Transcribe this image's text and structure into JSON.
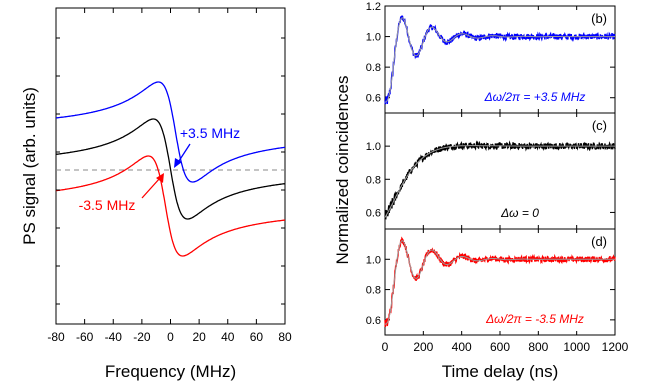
{
  "chart_data": [
    {
      "type": "line",
      "panel": "left",
      "xlabel": "Frequency (MHz)",
      "ylabel": "PS signal (arb. units)",
      "xlim": [
        -80,
        80
      ],
      "xticks": [
        "-80",
        "-60",
        "-40",
        "-20",
        "0",
        "20",
        "40",
        "60",
        "80"
      ],
      "y_tick_labels": "none",
      "reference_line": "dashed horizontal zero line",
      "annotations": [
        "+3.5 MHz",
        "-3.5 MHz"
      ],
      "series": [
        {
          "name": "+3.5 MHz",
          "color": "#0000ff",
          "offset": 1.0,
          "center": 3.5
        },
        {
          "name": "",
          "color": "#000000",
          "offset": 0.0,
          "center": 0.0
        },
        {
          "name": "-3.5 MHz",
          "color": "#ff0000",
          "offset": -1.0,
          "center": -3.5
        }
      ]
    },
    {
      "type": "line",
      "panel": "(b)",
      "label": "(b)",
      "annotation": "Δω/2π = +3.5 MHz",
      "color": "#0000ff",
      "ylim": [
        0.5,
        1.2
      ],
      "yticks": [
        "0.6",
        "0.8",
        "1.0",
        "1.2"
      ],
      "xlim": [
        0,
        1200
      ],
      "oscillation_period_ns": 160,
      "damping_ns": 130,
      "peak_time_ns": 110
    },
    {
      "type": "line",
      "panel": "(c)",
      "label": "(c)",
      "annotation": "Δω = 0",
      "color": "#000000",
      "ylim": [
        0.5,
        1.2
      ],
      "yticks": [
        "0.6",
        "0.8",
        "1.0"
      ],
      "xlim": [
        0,
        1200
      ],
      "peak_time_ns": 240
    },
    {
      "type": "line",
      "panel": "(d)",
      "label": "(d)",
      "annotation": "Δω/2π = -3.5 MHz",
      "color": "#ff0000",
      "ylim": [
        0.5,
        1.2
      ],
      "yticks": [
        "0.6",
        "0.8",
        "1.0"
      ],
      "xlim": [
        0,
        1200
      ],
      "xticks": [
        "0",
        "200",
        "400",
        "600",
        "800",
        "1000",
        "1200"
      ],
      "xlabel": "Time delay (ns)",
      "shared_ylabel": "Normalized coincidences",
      "oscillation_period_ns": 160,
      "damping_ns": 130,
      "peak_time_ns": 110
    }
  ]
}
